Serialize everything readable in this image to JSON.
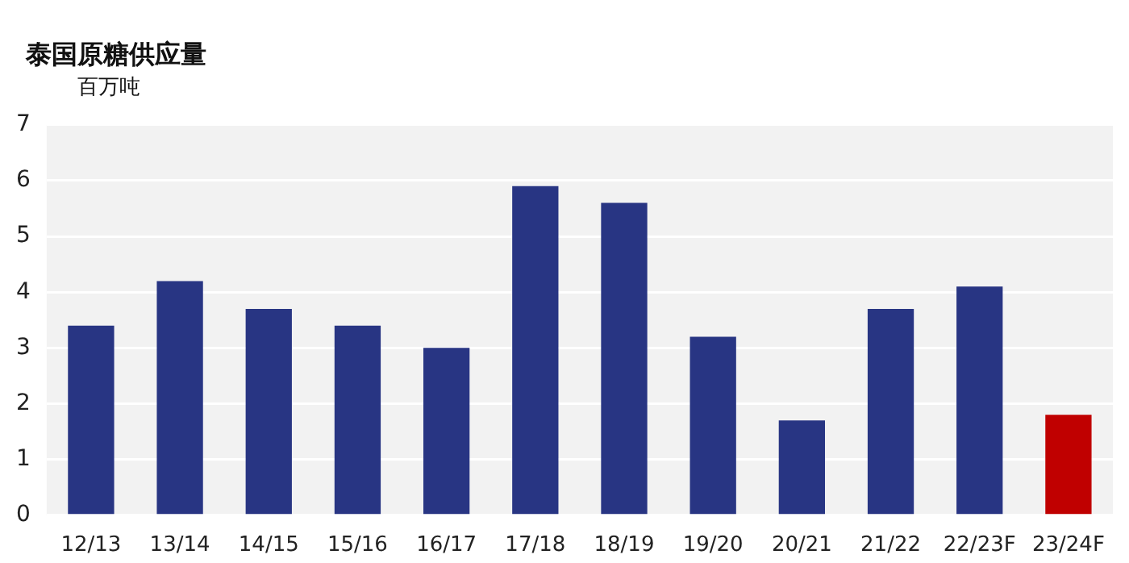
{
  "chart_data": {
    "type": "bar",
    "title": "泰国原糖供应量",
    "ylabel": "百万吨",
    "categories": [
      "12/13",
      "13/14",
      "14/15",
      "15/16",
      "16/17",
      "17/18",
      "18/19",
      "19/20",
      "20/21",
      "21/22",
      "22/23F",
      "23/24F"
    ],
    "values": [
      3.4,
      4.2,
      3.7,
      3.4,
      3.0,
      5.9,
      5.6,
      3.2,
      1.7,
      3.7,
      4.1,
      1.8
    ],
    "colors": [
      "#283583",
      "#283583",
      "#283583",
      "#283583",
      "#283583",
      "#283583",
      "#283583",
      "#283583",
      "#283583",
      "#283583",
      "#283583",
      "#c00000"
    ],
    "ylim": [
      0,
      7
    ],
    "yticks": [
      0,
      1,
      2,
      3,
      4,
      5,
      6,
      7
    ],
    "grid": "y",
    "legend": false
  }
}
